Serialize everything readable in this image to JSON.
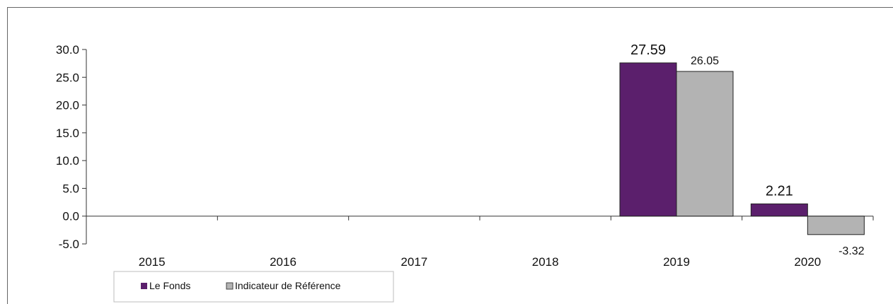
{
  "chart_data": {
    "type": "bar",
    "categories": [
      "2015",
      "2016",
      "2017",
      "2018",
      "2019",
      "2020"
    ],
    "series": [
      {
        "name": "Le Fonds",
        "values": [
          null,
          null,
          null,
          null,
          27.59,
          2.21
        ],
        "labels": [
          "",
          "",
          "",
          "",
          "27.59",
          "2.21"
        ],
        "color": "#5b1f6c"
      },
      {
        "name": "Indicateur de Référence",
        "values": [
          null,
          null,
          null,
          null,
          26.05,
          -3.32
        ],
        "labels": [
          "",
          "",
          "",
          "",
          "26.05",
          "-3.32"
        ],
        "color": "#b3b3b3"
      }
    ],
    "ylim": [
      -5,
      30
    ],
    "yticks": [
      "30.0",
      "25.0",
      "20.0",
      "15.0",
      "10.0",
      "5.0",
      "0.0",
      "-5.0"
    ],
    "ytick_values": [
      30,
      25,
      20,
      15,
      10,
      5,
      0,
      -5
    ],
    "legend": "bottom-left",
    "grid": false
  }
}
